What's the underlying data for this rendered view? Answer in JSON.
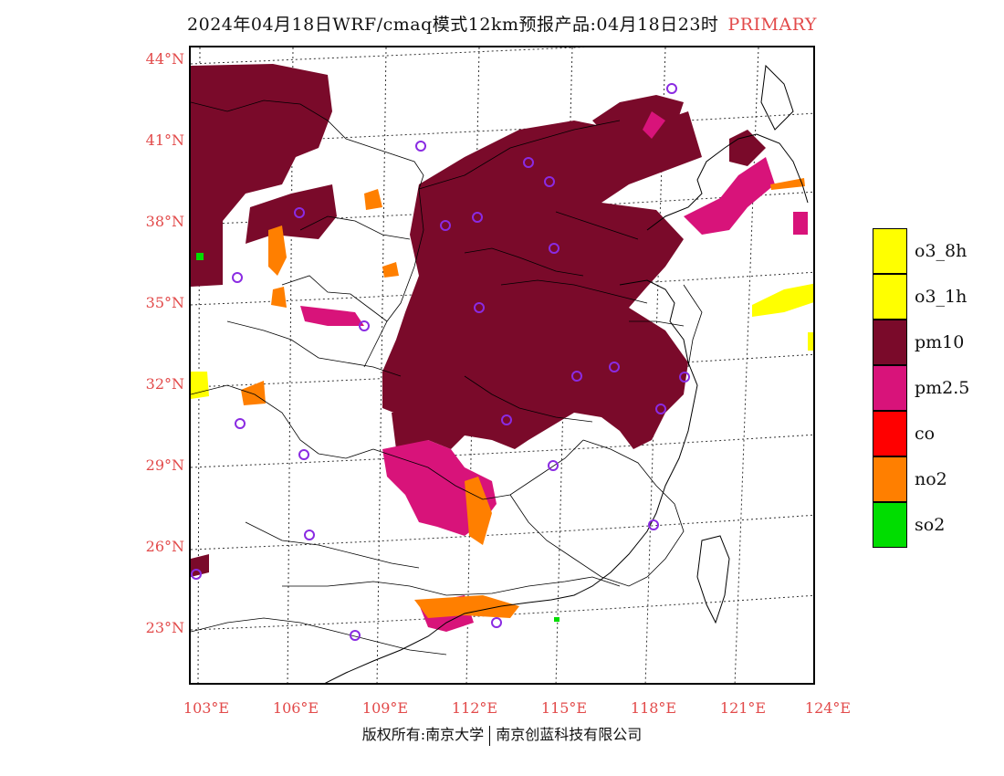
{
  "title": {
    "main": "2024年04月18日WRF/cmaq模式12km预报产品:04月18日23时",
    "tag": "PRIMARY"
  },
  "latitude_labels": [
    "44°N",
    "41°N",
    "38°N",
    "35°N",
    "32°N",
    "29°N",
    "26°N",
    "23°N"
  ],
  "longitude_labels": [
    "103°E",
    "106°E",
    "109°E",
    "112°E",
    "115°E",
    "118°E",
    "121°E",
    "124°E"
  ],
  "legend": [
    {
      "label": "o3_8h",
      "color": "#ffff00"
    },
    {
      "label": "o3_1h",
      "color": "#ffff00"
    },
    {
      "label": "pm10",
      "color": "#7a0a2a"
    },
    {
      "label": "pm2.5",
      "color": "#d8137a"
    },
    {
      "label": "co",
      "color": "#ff0000"
    },
    {
      "label": "no2",
      "color": "#ff7f00"
    },
    {
      "label": "so2",
      "color": "#00dd00"
    }
  ],
  "footer": {
    "left": "版权所有:南京大学",
    "right": "南京创蓝科技有限公司"
  }
}
